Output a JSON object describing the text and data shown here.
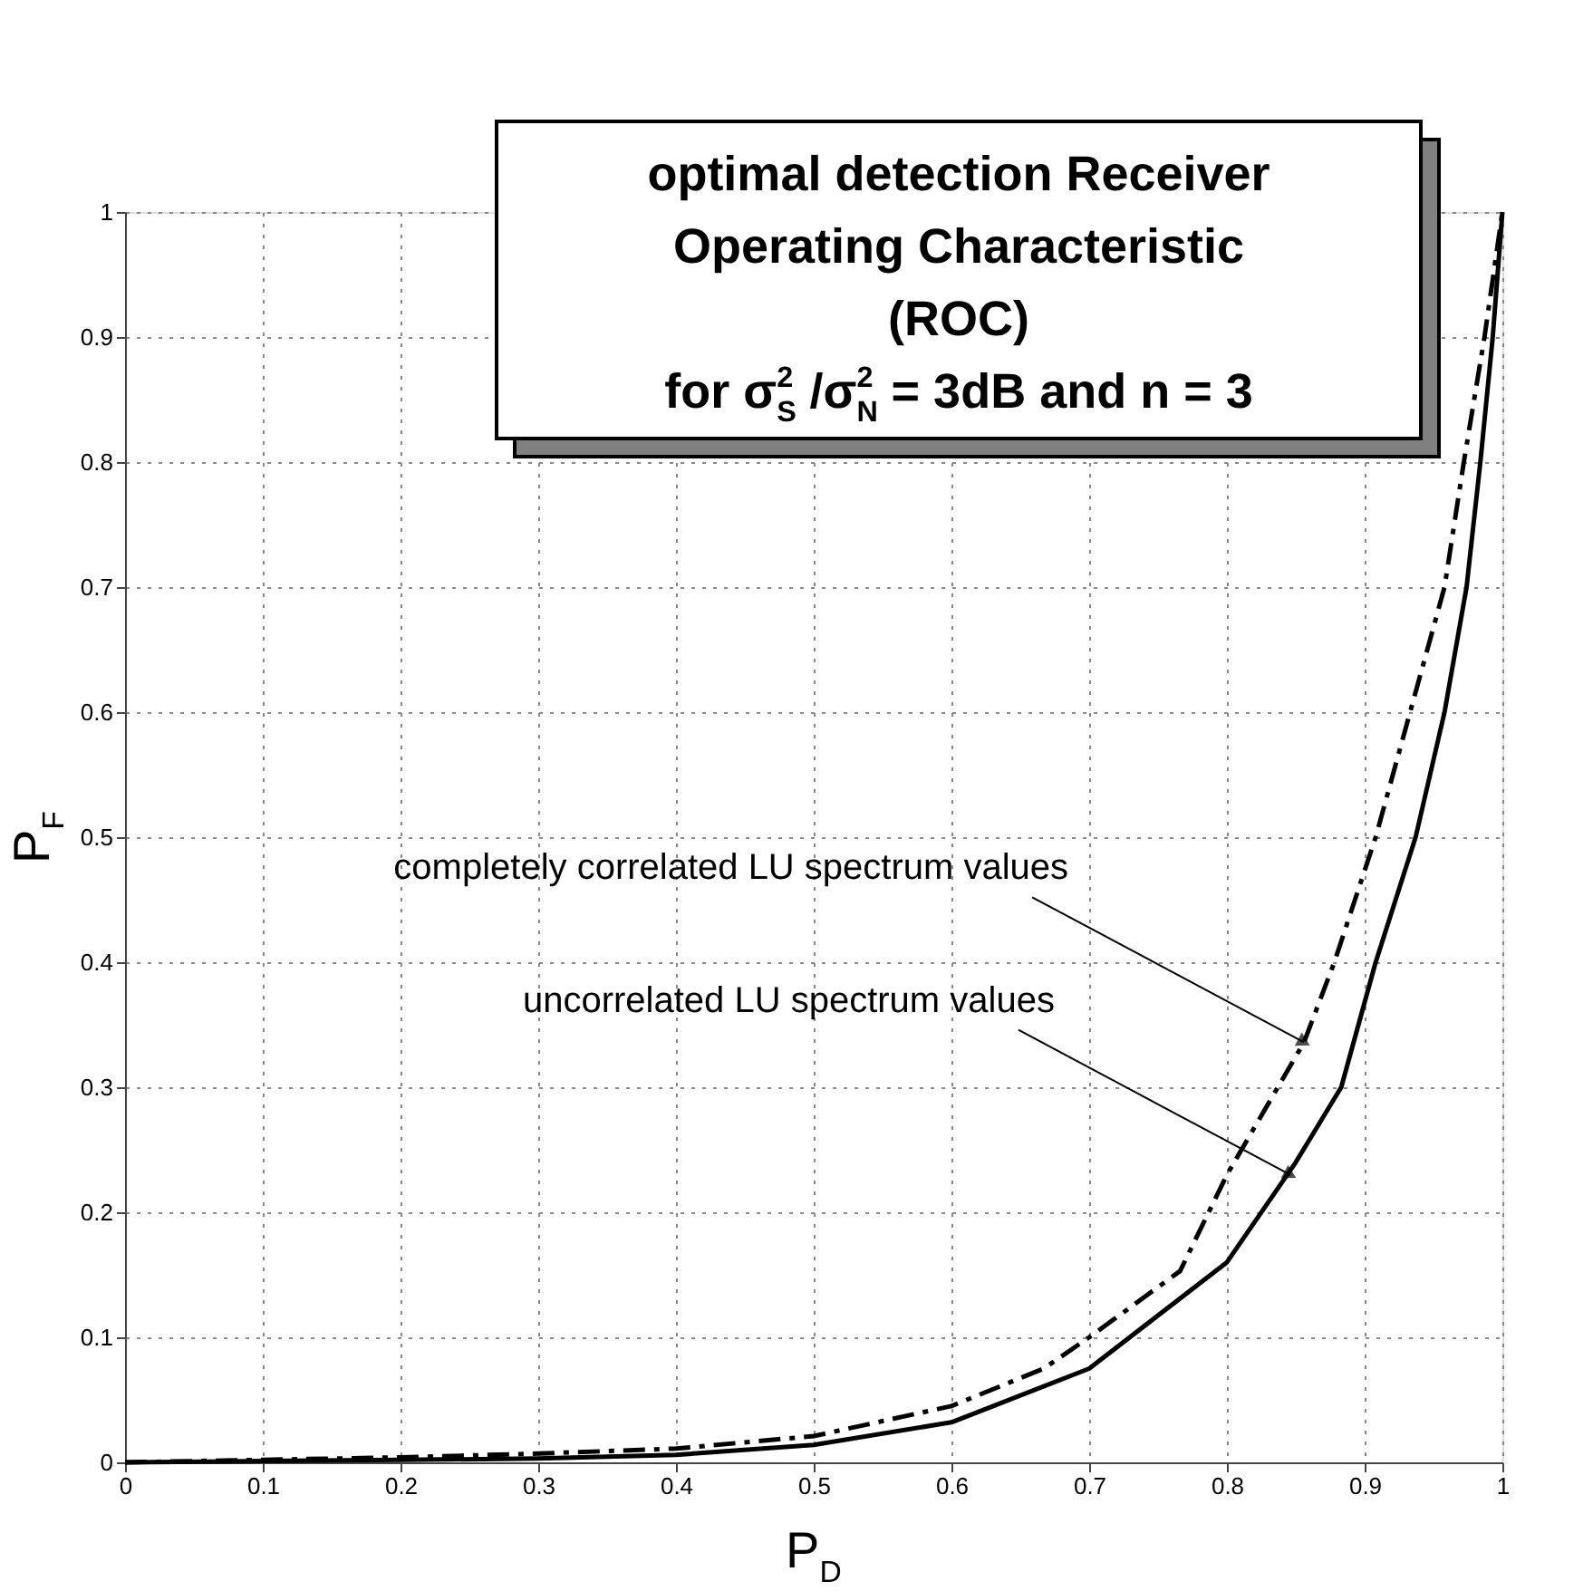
{
  "chart_data": {
    "type": "line",
    "title": "optimal detection Receiver\nOperating Characteristic\n(ROC)\nfor σ$^{2}$$_{S}$ /σ$^{2}$$_{N}$ = 3dB and n = 3",
    "xlabel": "P$_{D}$",
    "ylabel": "P$_{F}$",
    "xlim": [
      0,
      1
    ],
    "ylim": [
      0,
      1
    ],
    "xticks": [
      0,
      0.1,
      0.2,
      0.3,
      0.4,
      0.5,
      0.6,
      0.7,
      0.8,
      0.9,
      1
    ],
    "yticks": [
      0,
      0.1,
      0.2,
      0.3,
      0.4,
      0.5,
      0.6,
      0.7,
      0.8,
      0.9,
      1
    ],
    "grid": true,
    "legend": false,
    "marker": "none",
    "series": [
      {
        "color": "#000000",
        "line_style": "solid",
        "x": [
          0,
          0.1,
          0.2,
          0.3,
          0.4,
          0.5,
          0.6,
          0.7,
          0.8,
          0.85,
          0.883,
          0.908,
          0.937,
          0.958,
          0.974,
          0.984,
          0.993,
          1
        ],
        "values": [
          0,
          0.001,
          0.002,
          0.003,
          0.006,
          0.014,
          0.032,
          0.075,
          0.16,
          0.24,
          0.3,
          0.4,
          0.5,
          0.6,
          0.7,
          0.8,
          0.9,
          1
        ]
      },
      {
        "color": "#000000",
        "line_style": "dashed",
        "x": [
          0,
          0.1,
          0.2,
          0.3,
          0.4,
          0.5,
          0.6,
          0.667,
          0.7,
          0.766,
          0.8,
          0.856,
          0.878,
          0.908,
          0.933,
          0.958,
          0.972,
          0.987,
          1
        ],
        "values": [
          0,
          0.002,
          0.004,
          0.007,
          0.011,
          0.021,
          0.045,
          0.075,
          0.1,
          0.153,
          0.23,
          0.336,
          0.4,
          0.5,
          0.6,
          0.7,
          0.8,
          0.9,
          1
        ]
      }
    ],
    "annotations": [
      {
        "text": "completely correlated LU spectrum values",
        "x": 0.856,
        "y": 0.336
      },
      {
        "text": "uncorrelated LU spectrum values",
        "x": 0.846,
        "y": 0.23
      }
    ]
  }
}
